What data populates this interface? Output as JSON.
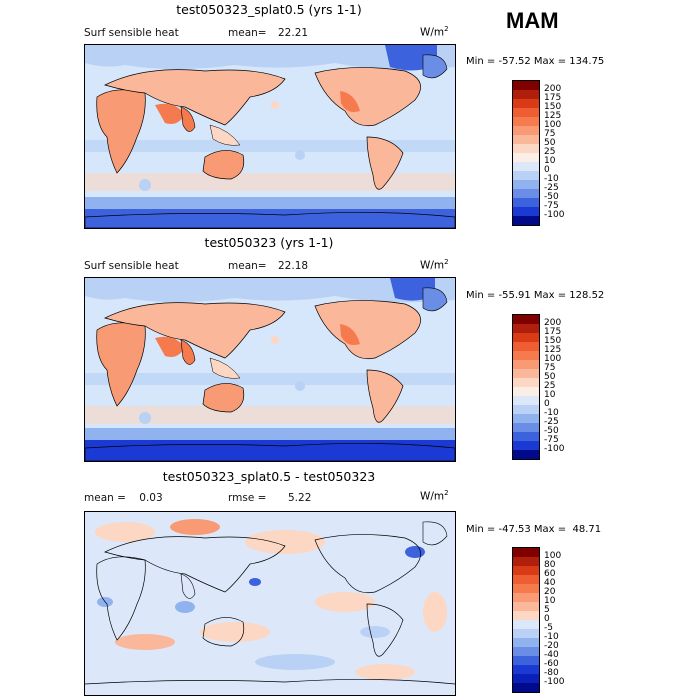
{
  "season": "MAM",
  "panels": [
    {
      "title": "test050323_splat0.5 (yrs 1-1)",
      "left_label": "Surf sensible heat",
      "stat_label": "mean=",
      "stat_value": "22.21",
      "units_base": "W/m",
      "units_sup": "2",
      "minmax": "Min = -57.52 Max = 134.75",
      "colorbar": {
        "levels": [
          "200",
          "175",
          "150",
          "125",
          "100",
          "75",
          "50",
          "25",
          "10",
          "0",
          "-10",
          "-25",
          "-50",
          "-75",
          "-100"
        ],
        "colors": [
          "#800000",
          "#b01e0c",
          "#d83b16",
          "#ee5e32",
          "#f57b4f",
          "#f89a73",
          "#fab79a",
          "#fcd7c3",
          "#fbeee6",
          "#dce8fa",
          "#b8d1f5",
          "#90b2ef",
          "#6a8ee6",
          "#3d62dd",
          "#1b3ad4",
          "#000a8a"
        ]
      }
    },
    {
      "title": "test050323 (yrs 1-1)",
      "left_label": "Surf sensible heat",
      "stat_label": "mean=",
      "stat_value": "22.18",
      "units_base": "W/m",
      "units_sup": "2",
      "minmax": "Min = -55.91 Max = 128.52",
      "colorbar": {
        "levels": [
          "200",
          "175",
          "150",
          "125",
          "100",
          "75",
          "50",
          "25",
          "10",
          "0",
          "-10",
          "-25",
          "-50",
          "-75",
          "-100"
        ],
        "colors": [
          "#800000",
          "#b01e0c",
          "#d83b16",
          "#ee5e32",
          "#f57b4f",
          "#f89a73",
          "#fab79a",
          "#fcd7c3",
          "#fbeee6",
          "#dce8fa",
          "#b8d1f5",
          "#90b2ef",
          "#6a8ee6",
          "#3d62dd",
          "#1b3ad4",
          "#000a8a"
        ]
      }
    },
    {
      "title": "test050323_splat0.5 - test050323",
      "left_label": "mean =    0.03",
      "stat_label": "rmse =",
      "stat_value": "5.22",
      "units_base": "W/m",
      "units_sup": "2",
      "minmax": "Min = -47.53 Max =  48.71",
      "colorbar": {
        "levels": [
          "100",
          "80",
          "60",
          "40",
          "20",
          "10",
          "5",
          "0",
          "-5",
          "-10",
          "-20",
          "-40",
          "-60",
          "-80",
          "-100"
        ],
        "colors": [
          "#800000",
          "#b01e0c",
          "#d83b16",
          "#ee5e32",
          "#f57b4f",
          "#f89a73",
          "#fab79a",
          "#fcd7c3",
          "#dce8fa",
          "#b8d1f5",
          "#90b2ef",
          "#6a8ee6",
          "#3d62dd",
          "#1b3ad4",
          "#0a20b8",
          "#000a8a"
        ]
      }
    }
  ]
}
